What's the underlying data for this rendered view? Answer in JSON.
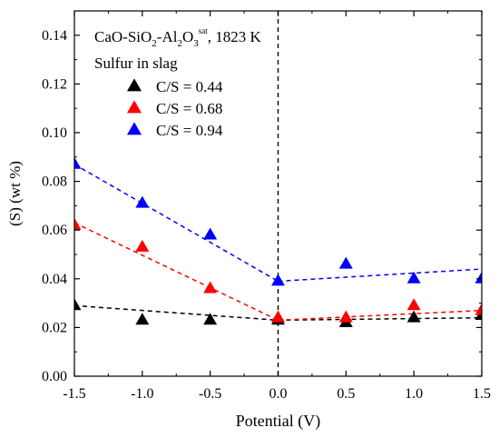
{
  "chart_data": {
    "type": "scatter",
    "title": {
      "base": "CaO-SiO",
      "sub1": "2",
      "mid": "-Al",
      "sub2": "2",
      "o": "O",
      "sub3": "3",
      "sup": "sat",
      "tail": ", 1823 K"
    },
    "legend_title": "Sulfur in slag",
    "xlabel": "Potential (V)",
    "ylabel": "(S) (wt %)",
    "xlim": [
      -1.5,
      1.5
    ],
    "ylim": [
      0.0,
      0.15
    ],
    "x_ticks": [
      -1.5,
      -1.0,
      -0.5,
      0.0,
      0.5,
      1.0,
      1.5
    ],
    "x_tick_labels": [
      "-1.5",
      "-1.0",
      "-0.5",
      "0.0",
      "0.5",
      "1.0",
      "1.5"
    ],
    "y_ticks": [
      0.0,
      0.02,
      0.04,
      0.06,
      0.08,
      0.1,
      0.12,
      0.14
    ],
    "y_tick_labels": [
      "0.00",
      "0.02",
      "0.04",
      "0.06",
      "0.08",
      "0.10",
      "0.12",
      "0.14"
    ],
    "reference_line_x": 0.0,
    "legend_position": "top-left",
    "series": [
      {
        "name": "C/S = 0.44",
        "color": "#000000",
        "marker": "triangle",
        "x": [
          -1.5,
          -1.0,
          -0.5,
          0.0,
          0.5,
          1.0,
          1.5
        ],
        "y": [
          0.029,
          0.023,
          0.023,
          0.023,
          0.022,
          0.024,
          0.025
        ],
        "fit_segments": [
          {
            "x": [
              -1.5,
              0.0
            ],
            "y": [
              0.029,
              0.023
            ]
          },
          {
            "x": [
              0.0,
              1.5
            ],
            "y": [
              0.023,
              0.024
            ]
          }
        ]
      },
      {
        "name": "C/S = 0.68",
        "color": "#ff0000",
        "marker": "triangle",
        "x": [
          -1.5,
          -1.0,
          -0.5,
          0.0,
          0.5,
          1.0,
          1.5
        ],
        "y": [
          0.062,
          0.053,
          0.036,
          0.024,
          0.024,
          0.029,
          0.027
        ],
        "fit_segments": [
          {
            "x": [
              -1.5,
              0.0
            ],
            "y": [
              0.063,
              0.023
            ]
          },
          {
            "x": [
              0.0,
              1.5
            ],
            "y": [
              0.023,
              0.027
            ]
          }
        ]
      },
      {
        "name": "C/S = 0.94",
        "color": "#0000ff",
        "marker": "triangle",
        "x": [
          -1.5,
          -1.0,
          -0.5,
          0.0,
          0.5,
          1.0,
          1.5
        ],
        "y": [
          0.087,
          0.071,
          0.058,
          0.039,
          0.046,
          0.04,
          0.04
        ],
        "fit_segments": [
          {
            "x": [
              -1.5,
              0.0
            ],
            "y": [
              0.087,
              0.039
            ]
          },
          {
            "x": [
              0.0,
              1.5
            ],
            "y": [
              0.039,
              0.044
            ]
          }
        ]
      }
    ]
  }
}
